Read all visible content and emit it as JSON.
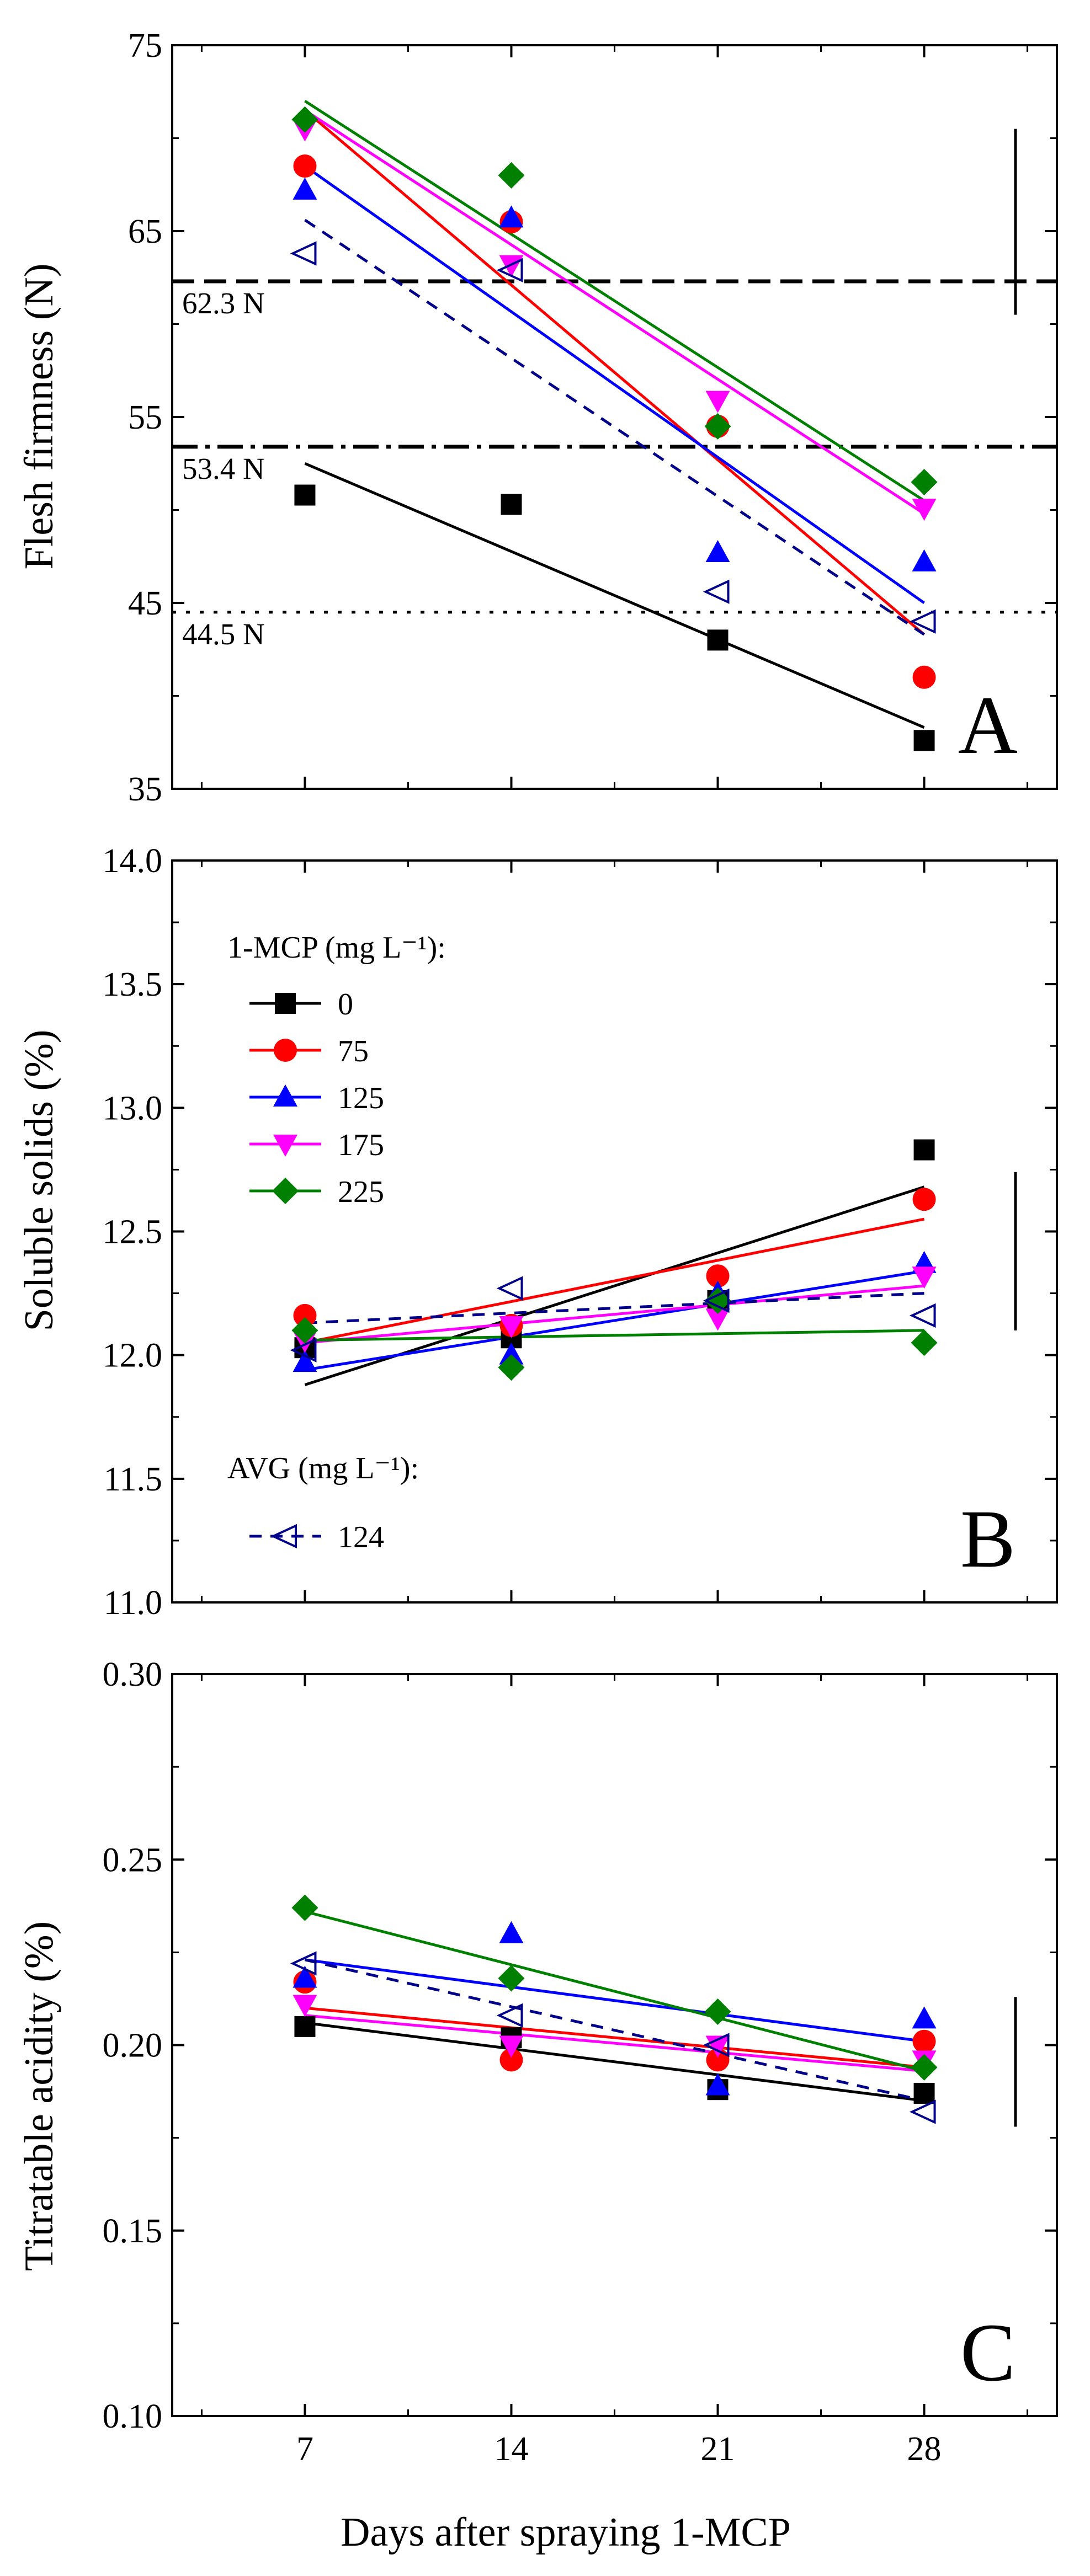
{
  "figure": {
    "x_label": "Days after spraying 1-MCP",
    "x_ticks": [
      "7",
      "14",
      "21",
      "28"
    ]
  },
  "legend": {
    "mcp_title": "1-MCP (mg L⁻¹):",
    "avg_title": "AVG (mg L⁻¹):",
    "entries": [
      {
        "label": "0",
        "color": "#000000",
        "marker": "square"
      },
      {
        "label": "75",
        "color": "#ff0000",
        "marker": "circle"
      },
      {
        "label": "125",
        "color": "#0000ff",
        "marker": "triangle-up"
      },
      {
        "label": "175",
        "color": "#ff00ff",
        "marker": "triangle-down"
      },
      {
        "label": "225",
        "color": "#008000",
        "marker": "diamond"
      }
    ],
    "avg_entry": {
      "label": "124",
      "color": "#00008b",
      "marker": "triangle-left-open"
    }
  },
  "chart_data": [
    {
      "type": "scatter",
      "panel": "A",
      "ylabel": "Flesh firmness (N)",
      "ylim": [
        35,
        75
      ],
      "yticks": [
        "35",
        "45",
        "55",
        "65",
        "75"
      ],
      "x": [
        7,
        14,
        21,
        28
      ],
      "reference_lines": [
        {
          "value": 62.3,
          "label": "62.3 N",
          "style": "dashed"
        },
        {
          "value": 53.4,
          "label": "53.4 N",
          "style": "dash-dot"
        },
        {
          "value": 44.5,
          "label": "44.5 N",
          "style": "dotted"
        }
      ],
      "error_bar": {
        "low": 60.5,
        "high": 70.5
      },
      "series": [
        {
          "name": "0",
          "values": [
            50.8,
            50.3,
            43.0,
            37.6
          ],
          "fit": [
            52.5,
            38.3
          ]
        },
        {
          "name": "75",
          "values": [
            68.5,
            65.5,
            54.5,
            41.0
          ],
          "fit": [
            71.5,
            43.3
          ]
        },
        {
          "name": "125",
          "values": [
            67.2,
            65.7,
            47.7,
            47.2
          ],
          "fit": [
            68.5,
            45.0
          ]
        },
        {
          "name": "175",
          "values": [
            70.5,
            63.2,
            55.9,
            50.1
          ],
          "fit": [
            71.5,
            49.8
          ]
        },
        {
          "name": "225",
          "values": [
            71.0,
            68.0,
            54.5,
            51.5
          ],
          "fit": [
            72.0,
            50.5
          ]
        },
        {
          "name": "AVG 124",
          "values": [
            63.8,
            62.9,
            45.6,
            44.0
          ],
          "fit": [
            65.6,
            43.3
          ]
        }
      ]
    },
    {
      "type": "scatter",
      "panel": "B",
      "ylabel": "Soluble solids (%)",
      "ylim": [
        11.0,
        14.0
      ],
      "yticks": [
        "11.0",
        "11.5",
        "12.0",
        "12.5",
        "13.0",
        "13.5",
        "14.0"
      ],
      "x": [
        7,
        14,
        21,
        28
      ],
      "error_bar": {
        "low": 12.1,
        "high": 12.74
      },
      "series": [
        {
          "name": "0",
          "values": [
            12.03,
            12.07,
            12.22,
            12.83
          ],
          "fit": [
            11.88,
            12.68
          ]
        },
        {
          "name": "75",
          "values": [
            12.16,
            12.12,
            12.32,
            12.63
          ],
          "fit": [
            12.05,
            12.55
          ]
        },
        {
          "name": "125",
          "values": [
            11.97,
            12.0,
            12.25,
            12.37
          ],
          "fit": [
            11.94,
            12.34
          ]
        },
        {
          "name": "175",
          "values": [
            12.06,
            12.12,
            12.15,
            12.32
          ],
          "fit": [
            12.05,
            12.28
          ]
        },
        {
          "name": "225",
          "values": [
            12.1,
            11.95,
            12.22,
            12.05
          ],
          "fit": [
            12.06,
            12.1
          ]
        },
        {
          "name": "AVG 124",
          "values": [
            12.02,
            12.27,
            12.22,
            12.16
          ],
          "fit": [
            12.13,
            12.25
          ]
        }
      ]
    },
    {
      "type": "scatter",
      "panel": "C",
      "ylabel": "Titratable acidity (%)",
      "ylim": [
        0.1,
        0.3
      ],
      "yticks": [
        "0.10",
        "0.15",
        "0.20",
        "0.25",
        "0.30"
      ],
      "x": [
        7,
        14,
        21,
        28
      ],
      "error_bar": {
        "low": 0.178,
        "high": 0.213
      },
      "series": [
        {
          "name": "0",
          "values": [
            0.205,
            0.202,
            0.188,
            0.187
          ],
          "fit": [
            0.206,
            0.185
          ]
        },
        {
          "name": "75",
          "values": [
            0.217,
            0.196,
            0.196,
            0.201
          ],
          "fit": [
            0.21,
            0.194
          ]
        },
        {
          "name": "125",
          "values": [
            0.218,
            0.23,
            0.189,
            0.207
          ],
          "fit": [
            0.223,
            0.201
          ]
        },
        {
          "name": "175",
          "values": [
            0.211,
            0.2,
            0.2,
            0.196
          ],
          "fit": [
            0.208,
            0.193
          ]
        },
        {
          "name": "225",
          "values": [
            0.237,
            0.218,
            0.209,
            0.194
          ],
          "fit": [
            0.236,
            0.193
          ]
        },
        {
          "name": "AVG 124",
          "values": [
            0.222,
            0.208,
            0.2,
            0.182
          ],
          "fit": [
            0.223,
            0.185
          ]
        }
      ]
    }
  ]
}
